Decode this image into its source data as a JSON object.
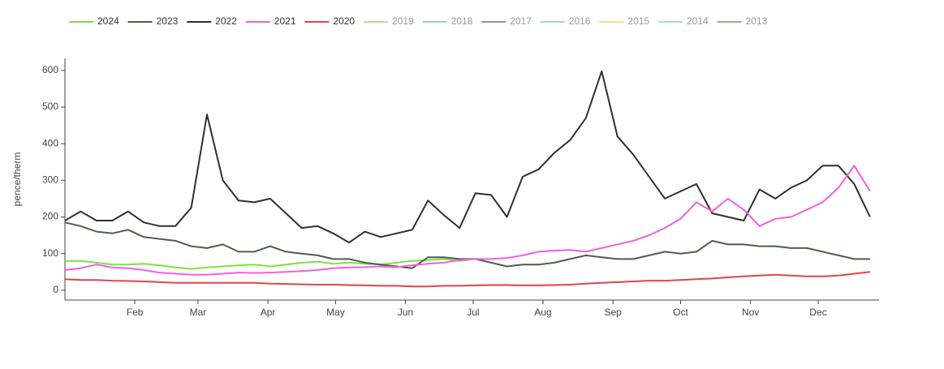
{
  "chart_data": {
    "type": "line",
    "y_label": "pence/therm",
    "x": [
      1,
      8,
      15,
      22,
      29,
      36,
      43,
      50,
      57,
      64,
      71,
      78,
      85,
      92,
      99,
      106,
      113,
      120,
      127,
      134,
      141,
      148,
      155,
      162,
      169,
      176,
      183,
      190,
      197,
      204,
      211,
      218,
      225,
      232,
      239,
      246,
      253,
      260,
      267,
      274,
      281,
      288,
      295,
      302,
      309,
      316,
      323,
      330,
      337,
      344,
      351,
      358
    ],
    "xlim": [
      1,
      362
    ],
    "xticks": [
      {
        "value": 32,
        "label": "Feb"
      },
      {
        "value": 60,
        "label": "Mar"
      },
      {
        "value": 91,
        "label": "Apr"
      },
      {
        "value": 121,
        "label": "May"
      },
      {
        "value": 152,
        "label": "Jun"
      },
      {
        "value": 182,
        "label": "Jul"
      },
      {
        "value": 213,
        "label": "Aug"
      },
      {
        "value": 244,
        "label": "Sep"
      },
      {
        "value": 274,
        "label": "Oct"
      },
      {
        "value": 305,
        "label": "Nov"
      },
      {
        "value": 335,
        "label": "Dec"
      }
    ],
    "ylim": [
      -27,
      633
    ],
    "yticks": [
      0,
      100,
      200,
      300,
      400,
      500,
      600
    ],
    "legend": "top",
    "series": [
      {
        "name": "2024",
        "color": "#7ee23e",
        "values": [
          80,
          80,
          75,
          70,
          70,
          72,
          68,
          62,
          58,
          62,
          65,
          68,
          70,
          65,
          70,
          75,
          78,
          72,
          75,
          72,
          70,
          75,
          80,
          82,
          85,
          80,
          85,
          null,
          null,
          null,
          null,
          null,
          null,
          null,
          null,
          null,
          null,
          null,
          null,
          null,
          null,
          null,
          null,
          null,
          null,
          null,
          null,
          null,
          null,
          null,
          null,
          null
        ]
      },
      {
        "name": "2023",
        "color": "#4d5e4d",
        "values": [
          185,
          175,
          160,
          155,
          165,
          145,
          140,
          135,
          120,
          115,
          125,
          105,
          105,
          120,
          105,
          100,
          95,
          85,
          85,
          75,
          70,
          65,
          60,
          90,
          90,
          85,
          85,
          75,
          65,
          70,
          70,
          75,
          85,
          95,
          90,
          85,
          85,
          95,
          105,
          100,
          105,
          135,
          125,
          125,
          120,
          120,
          115,
          115,
          105,
          95,
          85,
          85
        ]
      },
      {
        "name": "2022",
        "color": "#2f3032",
        "values": [
          190,
          215,
          190,
          190,
          215,
          185,
          175,
          175,
          225,
          480,
          300,
          245,
          240,
          250,
          210,
          170,
          175,
          155,
          130,
          160,
          145,
          155,
          165,
          245,
          205,
          170,
          265,
          260,
          200,
          310,
          330,
          375,
          410,
          470,
          598,
          420,
          370,
          310,
          250,
          270,
          290,
          210,
          200,
          190,
          275,
          250,
          280,
          300,
          340,
          340,
          290,
          200
        ]
      },
      {
        "name": "2021",
        "color": "#f060e0",
        "values": [
          55,
          60,
          70,
          62,
          60,
          55,
          48,
          45,
          42,
          42,
          45,
          48,
          47,
          48,
          50,
          52,
          55,
          60,
          62,
          63,
          65,
          63,
          68,
          72,
          75,
          82,
          85,
          85,
          88,
          95,
          105,
          108,
          110,
          105,
          115,
          125,
          135,
          150,
          170,
          195,
          240,
          215,
          250,
          220,
          175,
          195,
          200,
          220,
          240,
          280,
          340,
          270
        ]
      },
      {
        "name": "2020",
        "color": "#e04545",
        "values": [
          30,
          28,
          28,
          26,
          25,
          24,
          22,
          20,
          20,
          20,
          20,
          20,
          20,
          18,
          17,
          16,
          15,
          15,
          14,
          13,
          12,
          12,
          10,
          10,
          12,
          12,
          13,
          14,
          14,
          13,
          13,
          14,
          15,
          18,
          20,
          22,
          24,
          26,
          26,
          28,
          30,
          32,
          35,
          38,
          40,
          42,
          40,
          38,
          38,
          40,
          45,
          50
        ]
      },
      {
        "name": "2019",
        "color": "#f5c08a",
        "hidden": true
      },
      {
        "name": "2018",
        "color": "#8fd0f5",
        "hidden": true
      },
      {
        "name": "2017",
        "color": "#9a8fb5",
        "hidden": true
      },
      {
        "name": "2016",
        "color": "#8de0d5",
        "hidden": true
      },
      {
        "name": "2015",
        "color": "#f5e08a",
        "hidden": true
      },
      {
        "name": "2014",
        "color": "#a0dde8",
        "hidden": true
      },
      {
        "name": "2013",
        "color": "#c0a080",
        "hidden": true
      }
    ]
  }
}
